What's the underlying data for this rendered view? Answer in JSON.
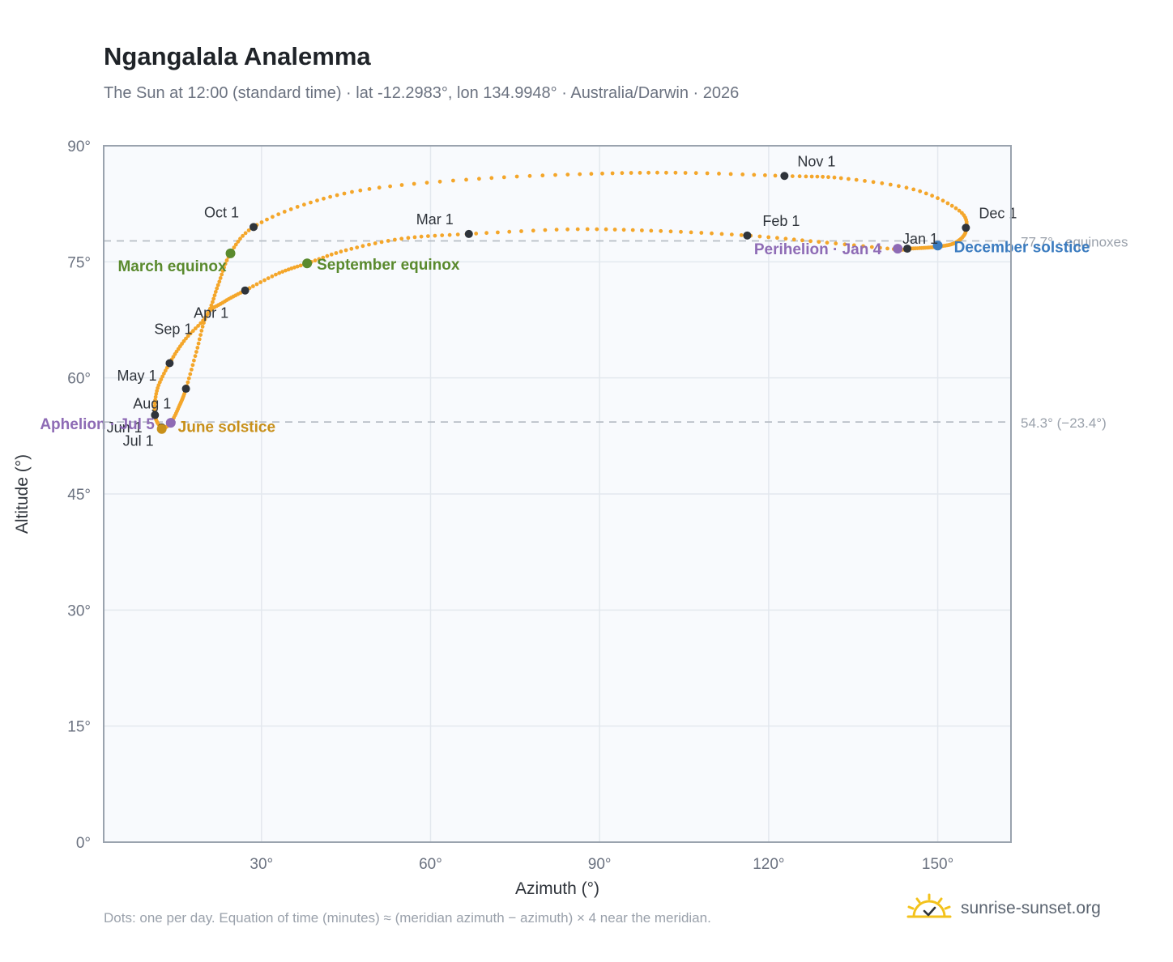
{
  "title": "Ngangalala Analemma",
  "subtitle": "The Sun at 12:00 (standard time) · lat -12.2983°, lon 134.9948° · Australia/Darwin · 2026",
  "footnote": "Dots: one per day. Equation of time (minutes) ≈ (meridian azimuth − azimuth) × 4 near the meridian.",
  "brand": {
    "name": "sunrise-sunset.org",
    "icon": "sun-logo-icon"
  },
  "colors": {
    "path": "#f4a62a",
    "month_marker": "#2f343b",
    "equinox": "#5a8a2e",
    "june_solstice": "#c8901a",
    "december_solstice": "#3a7bbf",
    "apsis": "#8e6bb5",
    "plot_bg": "#f8fafd",
    "grid": "#e3e8ee",
    "reference": "#b8bec6"
  },
  "chart_data": {
    "type": "scatter",
    "title": "Ngangalala Analemma",
    "xlabel": "Azimuth (°)",
    "ylabel": "Altitude (°)",
    "xlim": [
      2,
      163
    ],
    "ylim": [
      0,
      90
    ],
    "x_ticks": [
      30,
      60,
      90,
      120,
      150
    ],
    "x_tick_labels": [
      "30°",
      "60°",
      "90°",
      "120°",
      "150°"
    ],
    "y_ticks": [
      0,
      15,
      30,
      45,
      60,
      75,
      90
    ],
    "y_tick_labels": [
      "0°",
      "15°",
      "30°",
      "45°",
      "60°",
      "75°",
      "90°"
    ],
    "grid": true,
    "reference_lines": [
      {
        "y": 77.7,
        "label": "77.7° · equinoxes"
      },
      {
        "y": 54.3,
        "label": "54.3° (−23.4°)"
      }
    ],
    "path_anchors": [
      {
        "x": 144.6,
        "y": 76.7
      },
      {
        "x": 147.5,
        "y": 76.8
      },
      {
        "x": 150.5,
        "y": 77.0
      },
      {
        "x": 153.2,
        "y": 77.5
      },
      {
        "x": 155.0,
        "y": 79.0
      },
      {
        "x": 154.0,
        "y": 81.5
      },
      {
        "x": 146.0,
        "y": 84.3
      },
      {
        "x": 133.0,
        "y": 85.8
      },
      {
        "x": 122.8,
        "y": 86.1
      },
      {
        "x": 105.0,
        "y": 86.5
      },
      {
        "x": 90.0,
        "y": 86.4
      },
      {
        "x": 70.0,
        "y": 85.8
      },
      {
        "x": 50.0,
        "y": 84.5
      },
      {
        "x": 38.0,
        "y": 82.5
      },
      {
        "x": 28.6,
        "y": 79.5
      },
      {
        "x": 24.5,
        "y": 76.1
      },
      {
        "x": 22.3,
        "y": 72.0
      },
      {
        "x": 20.3,
        "y": 68.1
      },
      {
        "x": 16.5,
        "y": 65.0
      },
      {
        "x": 13.7,
        "y": 61.9
      },
      {
        "x": 11.5,
        "y": 58.5
      },
      {
        "x": 11.1,
        "y": 55.2
      },
      {
        "x": 12.3,
        "y": 53.6
      },
      {
        "x": 13.9,
        "y": 54.2
      },
      {
        "x": 15.5,
        "y": 56.5
      },
      {
        "x": 16.6,
        "y": 58.6
      },
      {
        "x": 18.5,
        "y": 63.5
      },
      {
        "x": 20.3,
        "y": 68.1
      },
      {
        "x": 23.3,
        "y": 69.8
      },
      {
        "x": 27.1,
        "y": 71.3
      },
      {
        "x": 33.0,
        "y": 73.5
      },
      {
        "x": 38.1,
        "y": 74.8
      },
      {
        "x": 45.0,
        "y": 76.5
      },
      {
        "x": 55.0,
        "y": 78.0
      },
      {
        "x": 66.8,
        "y": 78.6
      },
      {
        "x": 85.0,
        "y": 79.2
      },
      {
        "x": 100.0,
        "y": 79.0
      },
      {
        "x": 116.2,
        "y": 78.4
      },
      {
        "x": 130.0,
        "y": 77.5
      },
      {
        "x": 143.0,
        "y": 76.6
      },
      {
        "x": 144.6,
        "y": 76.7
      }
    ],
    "month_markers": [
      {
        "label": "Jan 1",
        "x": 144.6,
        "y": 76.7
      },
      {
        "label": "Feb 1",
        "x": 116.2,
        "y": 78.4
      },
      {
        "label": "Mar 1",
        "x": 66.8,
        "y": 78.6
      },
      {
        "label": "Apr 1",
        "x": 27.1,
        "y": 71.3
      },
      {
        "label": "May 1",
        "x": 16.6,
        "y": 58.6
      },
      {
        "label": "Jun 1",
        "x": 12.3,
        "y": 53.6
      },
      {
        "label": "Jul 1",
        "x": 12.3,
        "y": 53.4
      },
      {
        "label": "Aug 1",
        "x": 11.1,
        "y": 55.2
      },
      {
        "label": "Sep 1",
        "x": 13.7,
        "y": 61.9
      },
      {
        "label": "Oct 1",
        "x": 28.6,
        "y": 79.5
      },
      {
        "label": "Nov 1",
        "x": 122.8,
        "y": 86.1
      },
      {
        "label": "Dec 1",
        "x": 155.0,
        "y": 79.4
      }
    ],
    "special_markers": [
      {
        "label": "March equinox",
        "x": 24.5,
        "y": 76.1,
        "kind": "equinox"
      },
      {
        "label": "September equinox",
        "x": 38.1,
        "y": 74.8,
        "kind": "equinox"
      },
      {
        "label": "June solstice",
        "x": 12.3,
        "y": 53.4,
        "kind": "june_solstice"
      },
      {
        "label": "December solstice",
        "x": 150.0,
        "y": 77.1,
        "kind": "december_solstice"
      },
      {
        "label": "Perihelion · Jan 4",
        "x": 142.9,
        "y": 76.7,
        "kind": "apsis"
      },
      {
        "label": "Aphelion · Jul 5",
        "x": 13.9,
        "y": 54.2,
        "kind": "apsis"
      }
    ]
  }
}
